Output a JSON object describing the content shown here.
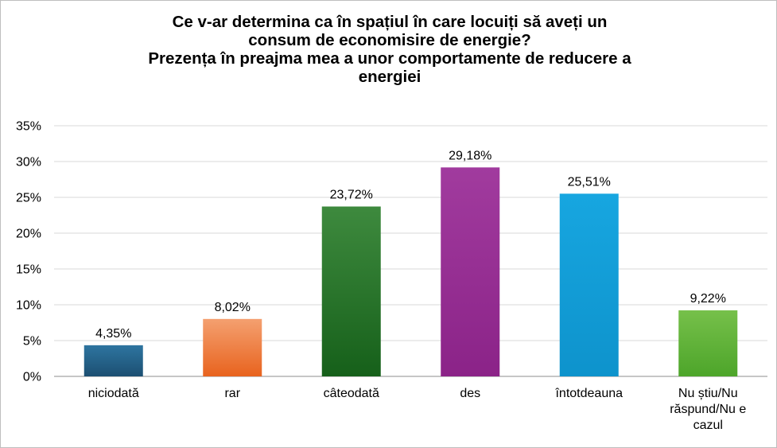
{
  "chart_data": {
    "type": "bar",
    "title_lines": [
      "Ce v-ar determina ca în spațiul în care locuiți să aveți un",
      "consum de economisire de energie?",
      "Prezența în preajma mea a unor comportamente de reducere a",
      "energiei"
    ],
    "categories": [
      "niciodată",
      "rar",
      "câteodată",
      "des",
      "întotdeauna",
      "Nu știu/Nu răspund/Nu e cazul"
    ],
    "category_lines": [
      [
        "niciodată"
      ],
      [
        "rar"
      ],
      [
        "câteodată"
      ],
      [
        "des"
      ],
      [
        "întotdeauna"
      ],
      [
        "Nu știu/Nu",
        "răspund/Nu e",
        "cazul"
      ]
    ],
    "values": [
      4.35,
      8.02,
      23.72,
      29.18,
      25.51,
      9.22
    ],
    "data_labels": [
      "4,35%",
      "8,02%",
      "23,72%",
      "29,18%",
      "25,51%",
      "9,22%"
    ],
    "colors": [
      [
        "#2e75a0",
        "#1c4f72"
      ],
      [
        "#f4a070",
        "#e8631e"
      ],
      [
        "#3e8a3e",
        "#16601a"
      ],
      [
        "#a13b9e",
        "#8b2388"
      ],
      [
        "#17a6e0",
        "#0e93cc"
      ],
      [
        "#76c04a",
        "#4da52a"
      ]
    ],
    "ylim": [
      0,
      35
    ],
    "yticks": [
      "0%",
      "5%",
      "10%",
      "15%",
      "20%",
      "25%",
      "30%",
      "35%"
    ],
    "grid": true
  }
}
